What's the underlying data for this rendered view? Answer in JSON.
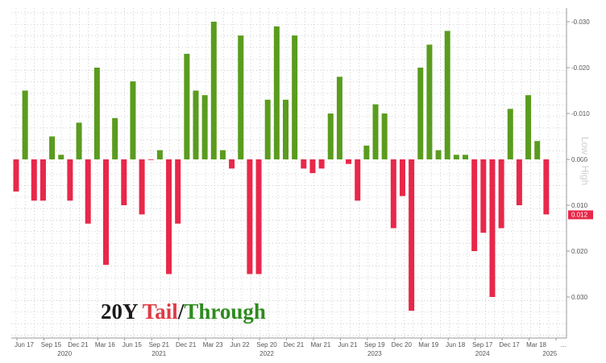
{
  "chart_data": {
    "type": "bar",
    "title_parts": [
      "20Y ",
      "Tail",
      "/",
      "Through"
    ],
    "title_colors": [
      "#1a1a1a",
      "#e03a45",
      "#1a1a1a",
      "#2e8b1e"
    ],
    "ylabel": "Low > High",
    "yaxis_inverted": true,
    "ylim": [
      -0.036,
      0.036
    ],
    "yticks": [
      -0.03,
      -0.02,
      -0.01,
      0.0,
      0.01,
      0.02,
      0.03
    ],
    "ytick_labels": [
      "-0.030",
      "-0.020",
      "-0.010",
      "0.000",
      "0.010",
      "0.020",
      "0.030"
    ],
    "last_value_label": "0.012",
    "colors": {
      "through": "#5a9c1e",
      "tail": "#e8284a"
    },
    "grid": true,
    "x_month_ticks": [
      {
        "i": 0,
        "label": "Jun 17"
      },
      {
        "i": 3,
        "label": "Sep 15"
      },
      {
        "i": 6,
        "label": "Dec 21"
      },
      {
        "i": 9,
        "label": "Mar 16"
      },
      {
        "i": 12,
        "label": "Jun 15"
      },
      {
        "i": 15,
        "label": "Sep 21"
      },
      {
        "i": 18,
        "label": "Dec 21"
      },
      {
        "i": 21,
        "label": "Mar 23"
      },
      {
        "i": 24,
        "label": "Jun 22"
      },
      {
        "i": 27,
        "label": "Sep 20"
      },
      {
        "i": 30,
        "label": "Dec 21"
      },
      {
        "i": 33,
        "label": "Mar 21"
      },
      {
        "i": 36,
        "label": "Jun 21"
      },
      {
        "i": 39,
        "label": "Sep 19"
      },
      {
        "i": 42,
        "label": "Dec 20"
      },
      {
        "i": 45,
        "label": "Mar 19"
      },
      {
        "i": 48,
        "label": "Jun 18"
      },
      {
        "i": 51,
        "label": "Sep 17"
      },
      {
        "i": 54,
        "label": "Dec 17"
      },
      {
        "i": 57,
        "label": "Mar 18"
      },
      {
        "i": 60,
        "label": "..."
      }
    ],
    "x_year_labels": [
      {
        "i": 4.5,
        "label": "2020"
      },
      {
        "i": 15,
        "label": "2021"
      },
      {
        "i": 27,
        "label": "2022"
      },
      {
        "i": 39,
        "label": "2023"
      },
      {
        "i": 51,
        "label": "2024"
      },
      {
        "i": 58.5,
        "label": "2025"
      }
    ],
    "values": [
      0.007,
      -0.015,
      0.009,
      0.009,
      -0.005,
      -0.001,
      0.009,
      -0.008,
      0.014,
      -0.02,
      0.023,
      -0.009,
      0.01,
      -0.017,
      0.012,
      0.0,
      -0.002,
      0.025,
      0.014,
      -0.023,
      -0.015,
      -0.014,
      -0.03,
      -0.002,
      0.002,
      -0.027,
      0.025,
      0.025,
      -0.013,
      -0.029,
      -0.013,
      -0.027,
      0.002,
      0.003,
      0.002,
      -0.01,
      -0.018,
      0.001,
      0.009,
      -0.003,
      -0.012,
      -0.01,
      0.015,
      0.008,
      0.033,
      -0.02,
      -0.025,
      -0.002,
      -0.028,
      -0.001,
      -0.001,
      0.02,
      0.016,
      0.03,
      0.015,
      -0.011,
      0.01,
      -0.014,
      -0.004,
      0.012
    ]
  }
}
